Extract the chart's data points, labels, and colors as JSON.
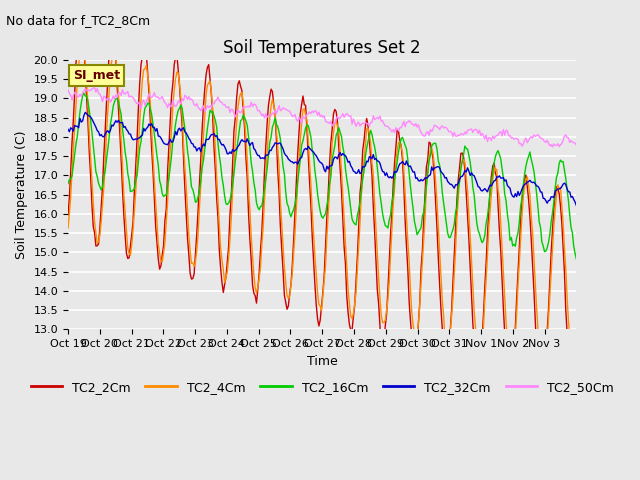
{
  "title": "Soil Temperatures Set 2",
  "subtitle": "No data for f_TC2_8Cm",
  "ylabel": "Soil Temperature (C)",
  "xlabel": "Time",
  "ylim": [
    13.0,
    20.0
  ],
  "yticks": [
    13.0,
    13.5,
    14.0,
    14.5,
    15.0,
    15.5,
    16.0,
    16.5,
    17.0,
    17.5,
    18.0,
    18.5,
    19.0,
    19.5,
    20.0
  ],
  "xtick_labels": [
    "Oct 19",
    "Oct 20",
    "Oct 21",
    "Oct 22",
    "Oct 23",
    "Oct 24",
    "Oct 25",
    "Oct 26",
    "Oct 27",
    "Oct 28",
    "Oct 29",
    "Oct 30",
    "Oct 31",
    "Nov 1",
    "Nov 2",
    "Nov 3"
  ],
  "legend_labels": [
    "TC2_2Cm",
    "TC2_4Cm",
    "TC2_16Cm",
    "TC2_32Cm",
    "TC2_50Cm"
  ],
  "line_colors": [
    "#cc0000",
    "#ff8c00",
    "#00cc00",
    "#0000cc",
    "#ff88ff"
  ],
  "background_color": "#e8e8e8",
  "plot_bg_color": "#e8e8e8",
  "grid_color": "#ffffff",
  "annotation_text": "SI_met",
  "annotation_bg": "#ffff99",
  "annotation_border": "#888800"
}
